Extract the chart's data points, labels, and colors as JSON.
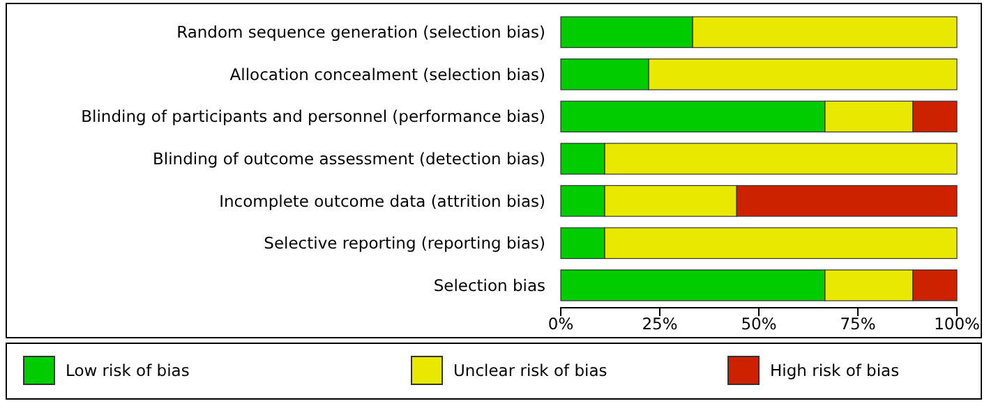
{
  "chart_data": {
    "type": "bar",
    "orientation": "horizontal",
    "stacked": true,
    "categories": [
      "Random sequence generation (selection bias)",
      "Allocation concealment (selection bias)",
      "Blinding of participants and personnel (performance bias)",
      "Blinding of outcome assessment (detection bias)",
      "Incomplete outcome data (attrition bias)",
      "Selective reporting (reporting bias)",
      "Selection bias"
    ],
    "series": [
      {
        "name": "Low risk of bias",
        "color": "#00cc00",
        "values": [
          33.3,
          22.2,
          66.7,
          11.1,
          11.1,
          11.1,
          66.7
        ]
      },
      {
        "name": "Unclear risk of bias",
        "color": "#e8e800",
        "values": [
          66.7,
          77.8,
          22.2,
          88.9,
          33.3,
          88.9,
          22.2
        ]
      },
      {
        "name": "High risk of bias",
        "color": "#cc2200",
        "values": [
          0,
          0,
          11.1,
          0,
          55.6,
          0,
          11.1
        ]
      }
    ],
    "xlim": [
      0,
      100
    ],
    "xticks": [
      {
        "value": 0,
        "label": "0%"
      },
      {
        "value": 25,
        "label": "25%"
      },
      {
        "value": 50,
        "label": "50%"
      },
      {
        "value": 75,
        "label": "75%"
      },
      {
        "value": 100,
        "label": "100%"
      }
    ],
    "legend": "bottom"
  }
}
